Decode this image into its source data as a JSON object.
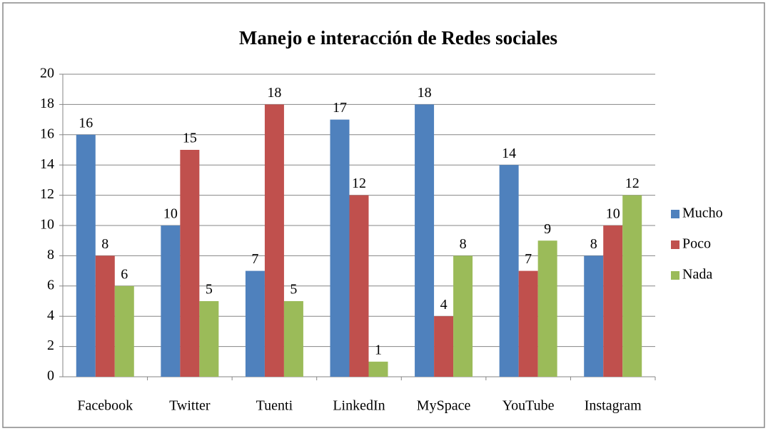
{
  "chart_data": {
    "type": "bar",
    "title": "Manejo e interacción de Redes sociales",
    "categories": [
      "Facebook",
      "Twitter",
      "Tuenti",
      "LinkedIn",
      "MySpace",
      "YouTube",
      "Instagram"
    ],
    "series": [
      {
        "name": "Mucho",
        "color": "#4f81bd",
        "values": [
          16,
          10,
          7,
          17,
          18,
          14,
          8
        ]
      },
      {
        "name": "Poco",
        "color": "#c0504d",
        "values": [
          8,
          15,
          18,
          12,
          4,
          7,
          10
        ]
      },
      {
        "name": "Nada",
        "color": "#9bbb59",
        "values": [
          6,
          5,
          5,
          1,
          8,
          9,
          12
        ]
      }
    ],
    "ylim": [
      0,
      20
    ],
    "yticks": [
      0,
      2,
      4,
      6,
      8,
      10,
      12,
      14,
      16,
      18,
      20
    ],
    "grid": true,
    "legend": "right"
  }
}
